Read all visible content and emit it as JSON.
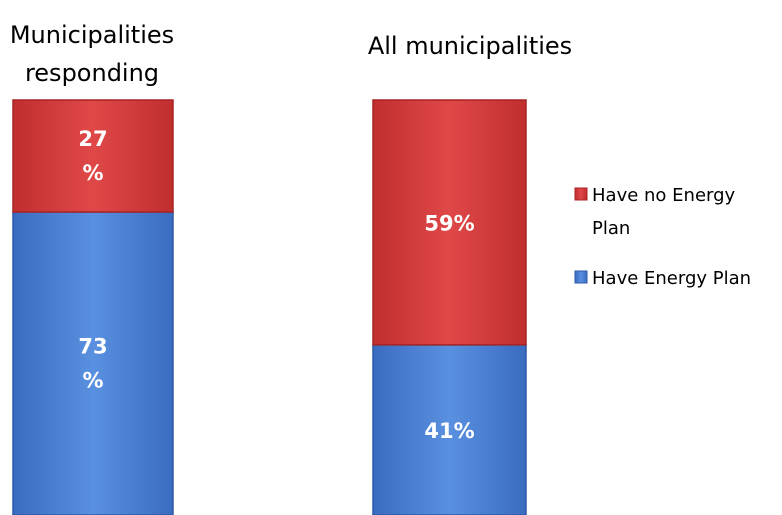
{
  "chart_data": {
    "type": "bar",
    "stacked": true,
    "percent": true,
    "categories": [
      "Municipalities responding",
      "All municipalities"
    ],
    "series": [
      {
        "name": "Have Energy Plan",
        "values": [
          73,
          41
        ],
        "color": "#4a7fd4",
        "labels": [
          "73 %",
          "41%"
        ]
      },
      {
        "name": "Have no Energy Plan",
        "values": [
          27,
          59
        ],
        "color": "#d23c3c",
        "labels": [
          "27 %",
          "59%"
        ]
      }
    ],
    "ylim": [
      0,
      100
    ],
    "legend": {
      "position": "right",
      "entries": [
        "Have no Energy Plan",
        "Have Energy Plan"
      ]
    },
    "grid": false
  }
}
